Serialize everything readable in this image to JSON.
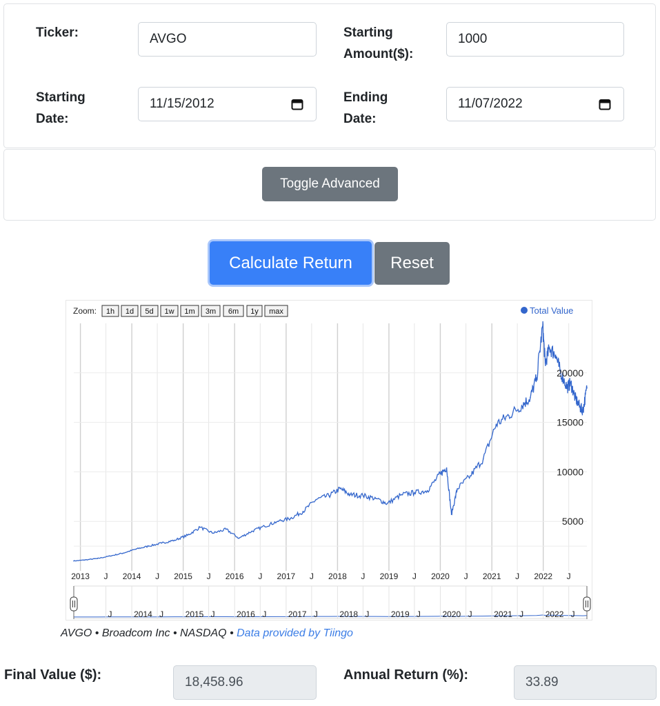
{
  "form": {
    "ticker_label": "Ticker:",
    "ticker_value": "AVGO",
    "starting_amount_label_1": "Starting",
    "starting_amount_label_2": "Amount($):",
    "starting_amount_value": "1000",
    "starting_date_label_1": "Starting",
    "starting_date_label_2": "Date:",
    "starting_date_value": "11/15/2012",
    "ending_date_label_1": "Ending",
    "ending_date_label_2": "Date:",
    "ending_date_value": "11/07/2022"
  },
  "buttons": {
    "toggle_advanced": "Toggle Advanced",
    "calculate": "Calculate Return",
    "reset": "Reset"
  },
  "chart": {
    "zoom_label": "Zoom:",
    "zoom_options": [
      "1h",
      "1d",
      "5d",
      "1w",
      "1m",
      "3m",
      "6m",
      "1y",
      "max"
    ],
    "legend": "Total Value",
    "line_color": "#3366cc"
  },
  "chart_data": {
    "type": "line",
    "series": [
      {
        "name": "Total Value",
        "x": [
          "2012-11-15",
          "2013-02-01",
          "2013-05-01",
          "2013-08-01",
          "2013-11-01",
          "2014-02-01",
          "2014-05-01",
          "2014-08-01",
          "2014-11-01",
          "2015-02-01",
          "2015-05-01",
          "2015-08-01",
          "2015-11-01",
          "2016-02-01",
          "2016-05-01",
          "2016-08-01",
          "2016-11-01",
          "2017-02-01",
          "2017-05-01",
          "2017-08-01",
          "2017-11-01",
          "2018-01-20",
          "2018-04-01",
          "2018-07-01",
          "2018-10-01",
          "2018-12-20",
          "2019-04-01",
          "2019-07-01",
          "2019-10-01",
          "2020-01-01",
          "2020-02-15",
          "2020-03-20",
          "2020-05-01",
          "2020-08-01",
          "2020-11-01",
          "2021-02-01",
          "2021-05-01",
          "2021-08-01",
          "2021-10-01",
          "2021-11-15",
          "2021-12-28",
          "2022-01-15",
          "2022-02-15",
          "2022-03-30",
          "2022-05-01",
          "2022-06-20",
          "2022-07-15",
          "2022-08-15",
          "2022-09-20",
          "2022-10-10",
          "2022-11-07"
        ],
        "y": [
          1000,
          1100,
          1250,
          1500,
          1800,
          2200,
          2500,
          2800,
          3100,
          3600,
          4400,
          3800,
          4200,
          3300,
          4000,
          4500,
          5000,
          5300,
          6000,
          7200,
          7600,
          8300,
          7700,
          7600,
          7300,
          6800,
          7700,
          7900,
          8100,
          9800,
          10400,
          5700,
          8300,
          9600,
          11300,
          14800,
          15700,
          16700,
          17500,
          19500,
          24700,
          21000,
          22500,
          21800,
          20200,
          18500,
          19000,
          17500,
          16500,
          16200,
          18458.96
        ]
      }
    ],
    "x_ticks": [
      "2013",
      "J",
      "2014",
      "J",
      "2015",
      "J",
      "2016",
      "J",
      "2017",
      "J",
      "2018",
      "J",
      "2019",
      "J",
      "2020",
      "J",
      "2021",
      "J",
      "2022",
      "J"
    ],
    "navigator_ticks": [
      "J",
      "2014",
      "J",
      "2015",
      "J",
      "2016",
      "J",
      "2017",
      "J",
      "2018",
      "J",
      "2019",
      "J",
      "2020",
      "J",
      "2021",
      "J",
      "2022",
      "J"
    ],
    "y_ticks": [
      5000,
      10000,
      15000,
      20000
    ],
    "ylim": [
      0,
      25000
    ],
    "grid": true,
    "legend_position": "top-right"
  },
  "attribution": {
    "text": "AVGO • Broadcom Inc • NASDAQ • ",
    "link": "Data provided by Tiingo"
  },
  "results": {
    "final_value_label": "Final Value ($):",
    "final_value": "18,458.96",
    "annual_return_label": "Annual Return (%):",
    "annual_return": "33.89"
  }
}
